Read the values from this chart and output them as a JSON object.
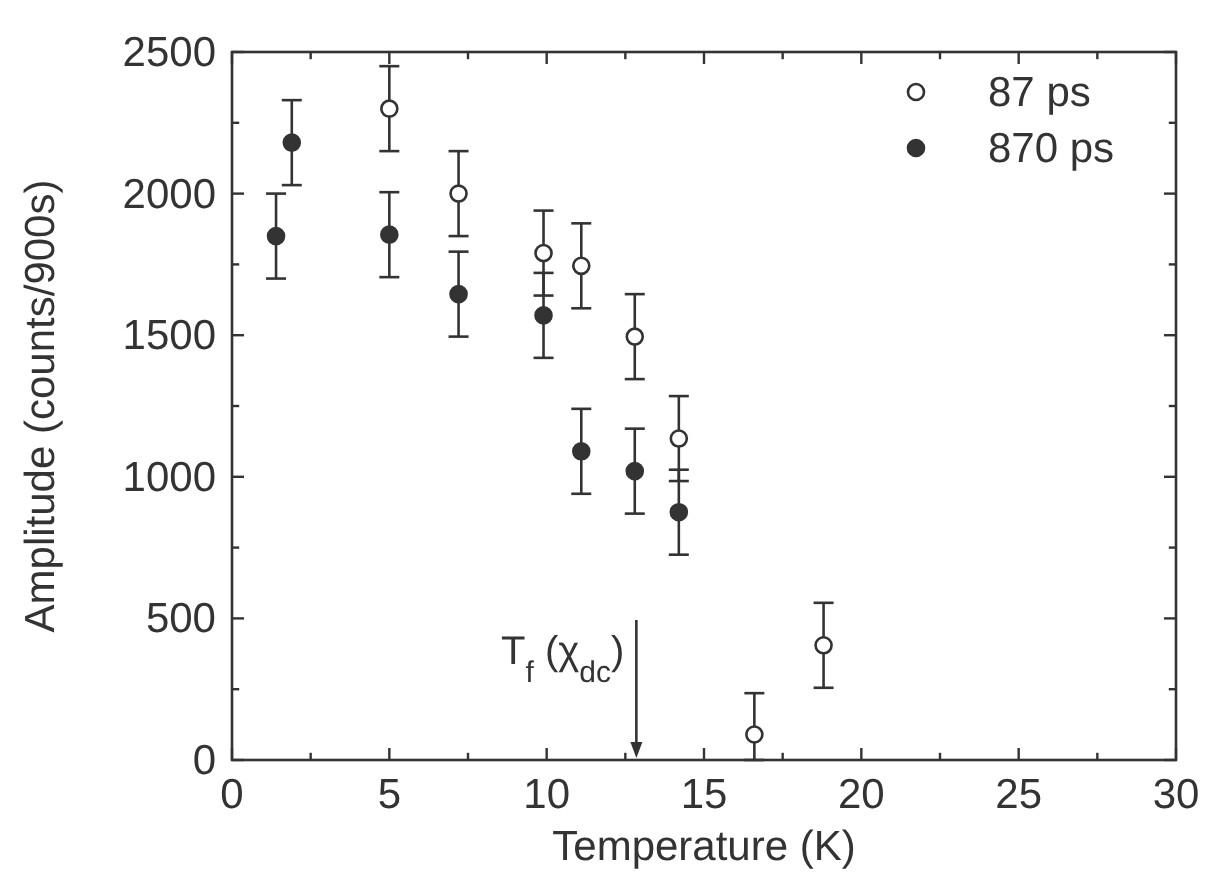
{
  "chart_data": {
    "type": "scatter",
    "xlabel": "Temperature (K)",
    "ylabel": "Amplitude (counts/900s)",
    "xlim": [
      0,
      30
    ],
    "ylim": [
      0,
      2500
    ],
    "xticks": [
      0,
      {
        "value": 2.5,
        "label": null
      },
      5,
      {
        "value": 7.5,
        "label": null
      },
      10,
      {
        "value": 12.5,
        "label": null
      },
      15,
      {
        "value": 17.5,
        "label": null
      },
      20,
      {
        "value": 22.5,
        "label": null
      },
      25,
      {
        "value": 27.5,
        "label": null
      },
      30
    ],
    "yticks": [
      0,
      {
        "value": 250,
        "label": null
      },
      500,
      {
        "value": 750,
        "label": null
      },
      1000,
      {
        "value": 1250,
        "label": null
      },
      1500,
      {
        "value": 1750,
        "label": null
      },
      2000,
      {
        "value": 2250,
        "label": null
      },
      2500
    ],
    "marker": "circle",
    "legend": "top right",
    "grid": false,
    "series": [
      {
        "name": "87 ps",
        "color": "#333333",
        "x": [
          5.0,
          7.2,
          9.9,
          11.1,
          12.8,
          14.2,
          16.6,
          18.8
        ],
        "values": [
          2300,
          2000,
          1790,
          1745,
          1495,
          1135,
          90,
          405
        ],
        "errors": [
          150,
          150,
          150,
          150,
          150,
          150,
          [
            0,
            236
          ],
          150
        ]
      },
      {
        "name": "870 ps",
        "color": "#333333",
        "x": [
          1.4,
          1.9,
          5.0,
          7.2,
          9.9,
          11.1,
          12.8,
          14.2
        ],
        "values": [
          1850,
          2180,
          1855,
          1645,
          1570,
          1090,
          1020,
          875
        ],
        "errors": [
          150,
          150,
          150,
          150,
          150,
          150,
          150,
          150
        ]
      }
    ],
    "ref_lines": [
      {
        "axis": "x",
        "value": 12.85,
        "label": "T$_{f}$ (χ$_{dc}$)"
      }
    ]
  }
}
